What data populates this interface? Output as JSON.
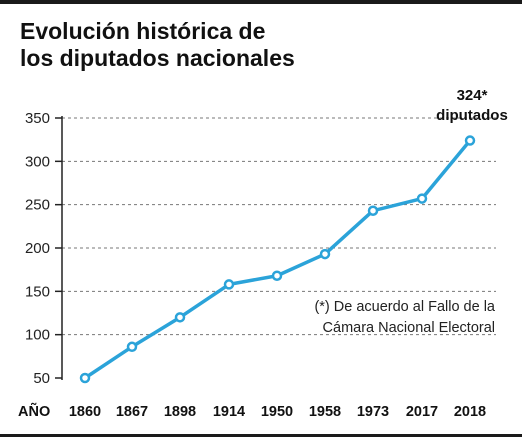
{
  "header": {
    "title_line1": "Evolución histórica de",
    "title_line2": "los diputados nacionales"
  },
  "chart_data": {
    "type": "line",
    "title": "Evolución histórica de los diputados nacionales",
    "xlabel": "AÑO",
    "ylabel": "",
    "categories": [
      "1860",
      "1867",
      "1898",
      "1914",
      "1950",
      "1958",
      "1973",
      "2017",
      "2018"
    ],
    "series": [
      {
        "values": [
          50,
          86,
          120,
          158,
          168,
          193,
          243,
          257,
          324
        ]
      }
    ],
    "yticks": [
      50,
      100,
      150,
      200,
      250,
      300,
      350
    ],
    "ylim": [
      50,
      350
    ],
    "grid": true,
    "line_color": "#2ba3d9",
    "annotation": {
      "value": "324*",
      "text": "diputados"
    },
    "footnote": [
      "(*) De acuerdo al Fallo de la",
      "Cámara Nacional Electoral"
    ]
  }
}
